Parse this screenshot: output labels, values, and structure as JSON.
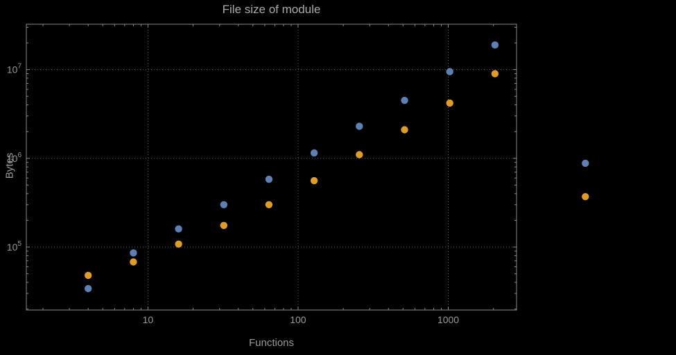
{
  "figure": {
    "background": "#000000"
  },
  "colors": {
    "blue": "#5e81b5",
    "orange": "#e19c24",
    "text": "#9a9a9a",
    "title_text": "#ababab",
    "frame": "#8a8a8a",
    "grid": "#5f5f5f",
    "background": "#000000"
  },
  "axes": {
    "x_ticks": [
      {
        "value": 10,
        "label": "10"
      },
      {
        "value": 100,
        "label": "100"
      },
      {
        "value": 1000,
        "label": "1000"
      }
    ],
    "y_ticks": [
      {
        "value": 100000,
        "base": "10",
        "exponent": "5"
      },
      {
        "value": 1000000,
        "base": "10",
        "exponent": "6"
      },
      {
        "value": 10000000,
        "base": "10",
        "exponent": "7"
      }
    ]
  },
  "chart_data": {
    "type": "scatter",
    "title": "File size of module",
    "xlabel": "Functions",
    "ylabel": "Bytes",
    "x_scale": "log",
    "y_scale": "log",
    "xlim": [
      1.55,
      2850
    ],
    "ylim": [
      19500,
      32500000
    ],
    "grid": "dotted lines at decade ticks",
    "legend_position": "none",
    "series": [
      {
        "name": "series-1",
        "color": "#5e81b5",
        "points": [
          [
            4,
            34000
          ],
          [
            8,
            86000
          ],
          [
            16,
            160000
          ],
          [
            32,
            300000
          ],
          [
            64,
            580000
          ],
          [
            128,
            1150000
          ],
          [
            256,
            2300000
          ],
          [
            512,
            4500000
          ],
          [
            1024,
            9500000
          ],
          [
            2048,
            19000000
          ],
          [
            8192,
            880000
          ]
        ]
      },
      {
        "name": "series-2",
        "color": "#e19c24",
        "points": [
          [
            4,
            48000
          ],
          [
            8,
            68000
          ],
          [
            16,
            108000
          ],
          [
            32,
            175000
          ],
          [
            64,
            300000
          ],
          [
            128,
            560000
          ],
          [
            256,
            1100000
          ],
          [
            512,
            2100000
          ],
          [
            1024,
            4200000
          ],
          [
            2048,
            9000000
          ],
          [
            8192,
            370000
          ]
        ]
      }
    ]
  }
}
